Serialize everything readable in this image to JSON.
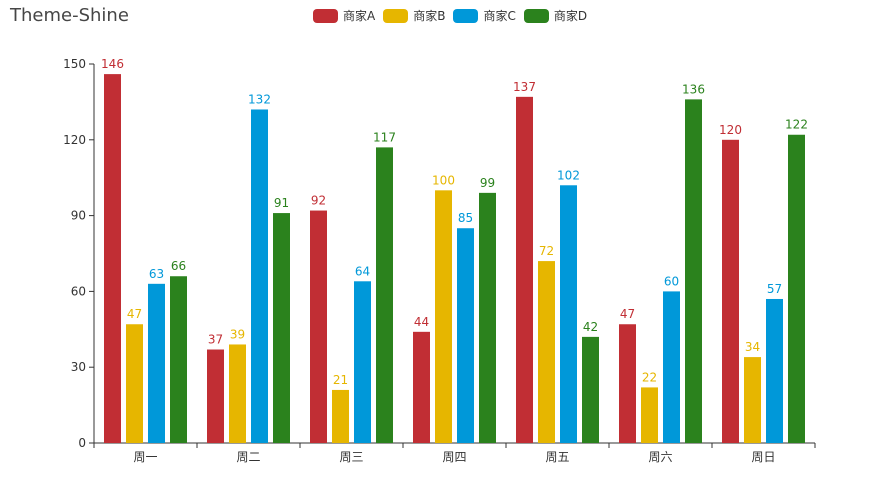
{
  "title": "Theme-Shine",
  "chart_data": {
    "type": "bar",
    "title": "Theme-Shine",
    "xlabel": "",
    "ylabel": "",
    "categories": [
      "周一",
      "周二",
      "周三",
      "周四",
      "周五",
      "周六",
      "周日"
    ],
    "ylim": [
      0,
      150
    ],
    "yticks": [
      0,
      30,
      60,
      90,
      120,
      150
    ],
    "grid": false,
    "legend_position": "top-center",
    "series": [
      {
        "name": "商家A",
        "color": "#c12e34",
        "values": [
          146,
          37,
          92,
          44,
          137,
          47,
          120
        ]
      },
      {
        "name": "商家B",
        "color": "#e6b600",
        "values": [
          47,
          39,
          21,
          100,
          72,
          22,
          34
        ]
      },
      {
        "name": "商家C",
        "color": "#0098d9",
        "values": [
          63,
          132,
          64,
          85,
          102,
          60,
          57
        ]
      },
      {
        "name": "商家D",
        "color": "#2b821d",
        "values": [
          66,
          91,
          117,
          99,
          42,
          136,
          122
        ]
      }
    ]
  }
}
